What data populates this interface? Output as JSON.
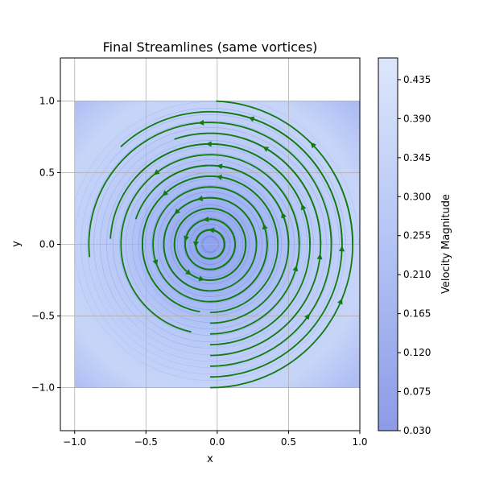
{
  "chart_data": {
    "type": "streamplot",
    "title": "Final Streamlines (same vortices)",
    "xlabel": "x",
    "ylabel": "y",
    "xlim": [
      -1.1,
      1.0
    ],
    "ylim": [
      -1.3,
      1.3
    ],
    "xticks": [
      -1.0,
      -0.5,
      0.0,
      0.5,
      1.0
    ],
    "xtick_labels": [
      "−1.0",
      "−0.5",
      "0.0",
      "0.5",
      "1.0"
    ],
    "yticks": [
      -1.0,
      -0.5,
      0.0,
      0.5,
      1.0
    ],
    "ytick_labels": [
      "−1.0",
      "−0.5",
      "0.0",
      "0.5",
      "1.0"
    ],
    "grid": true,
    "field_extent": {
      "x": [
        -1.0,
        1.0
      ],
      "y": [
        -1.0,
        1.0
      ]
    },
    "vortex_center": [
      -0.05,
      0.0
    ],
    "rotation": "counterclockwise",
    "streamline_color": "#117a11",
    "colorbar": {
      "label": "Velocity Magnitude",
      "min": 0.03,
      "max": 0.46,
      "ticks": [
        0.03,
        0.075,
        0.12,
        0.165,
        0.21,
        0.255,
        0.3,
        0.345,
        0.39,
        0.435
      ],
      "tick_labels": [
        "0.030",
        "0.075",
        "0.120",
        "0.165",
        "0.210",
        "0.255",
        "0.300",
        "0.345",
        "0.390",
        "0.435"
      ],
      "color_low": "#8c9be6",
      "color_high": "#dde6fb"
    }
  }
}
